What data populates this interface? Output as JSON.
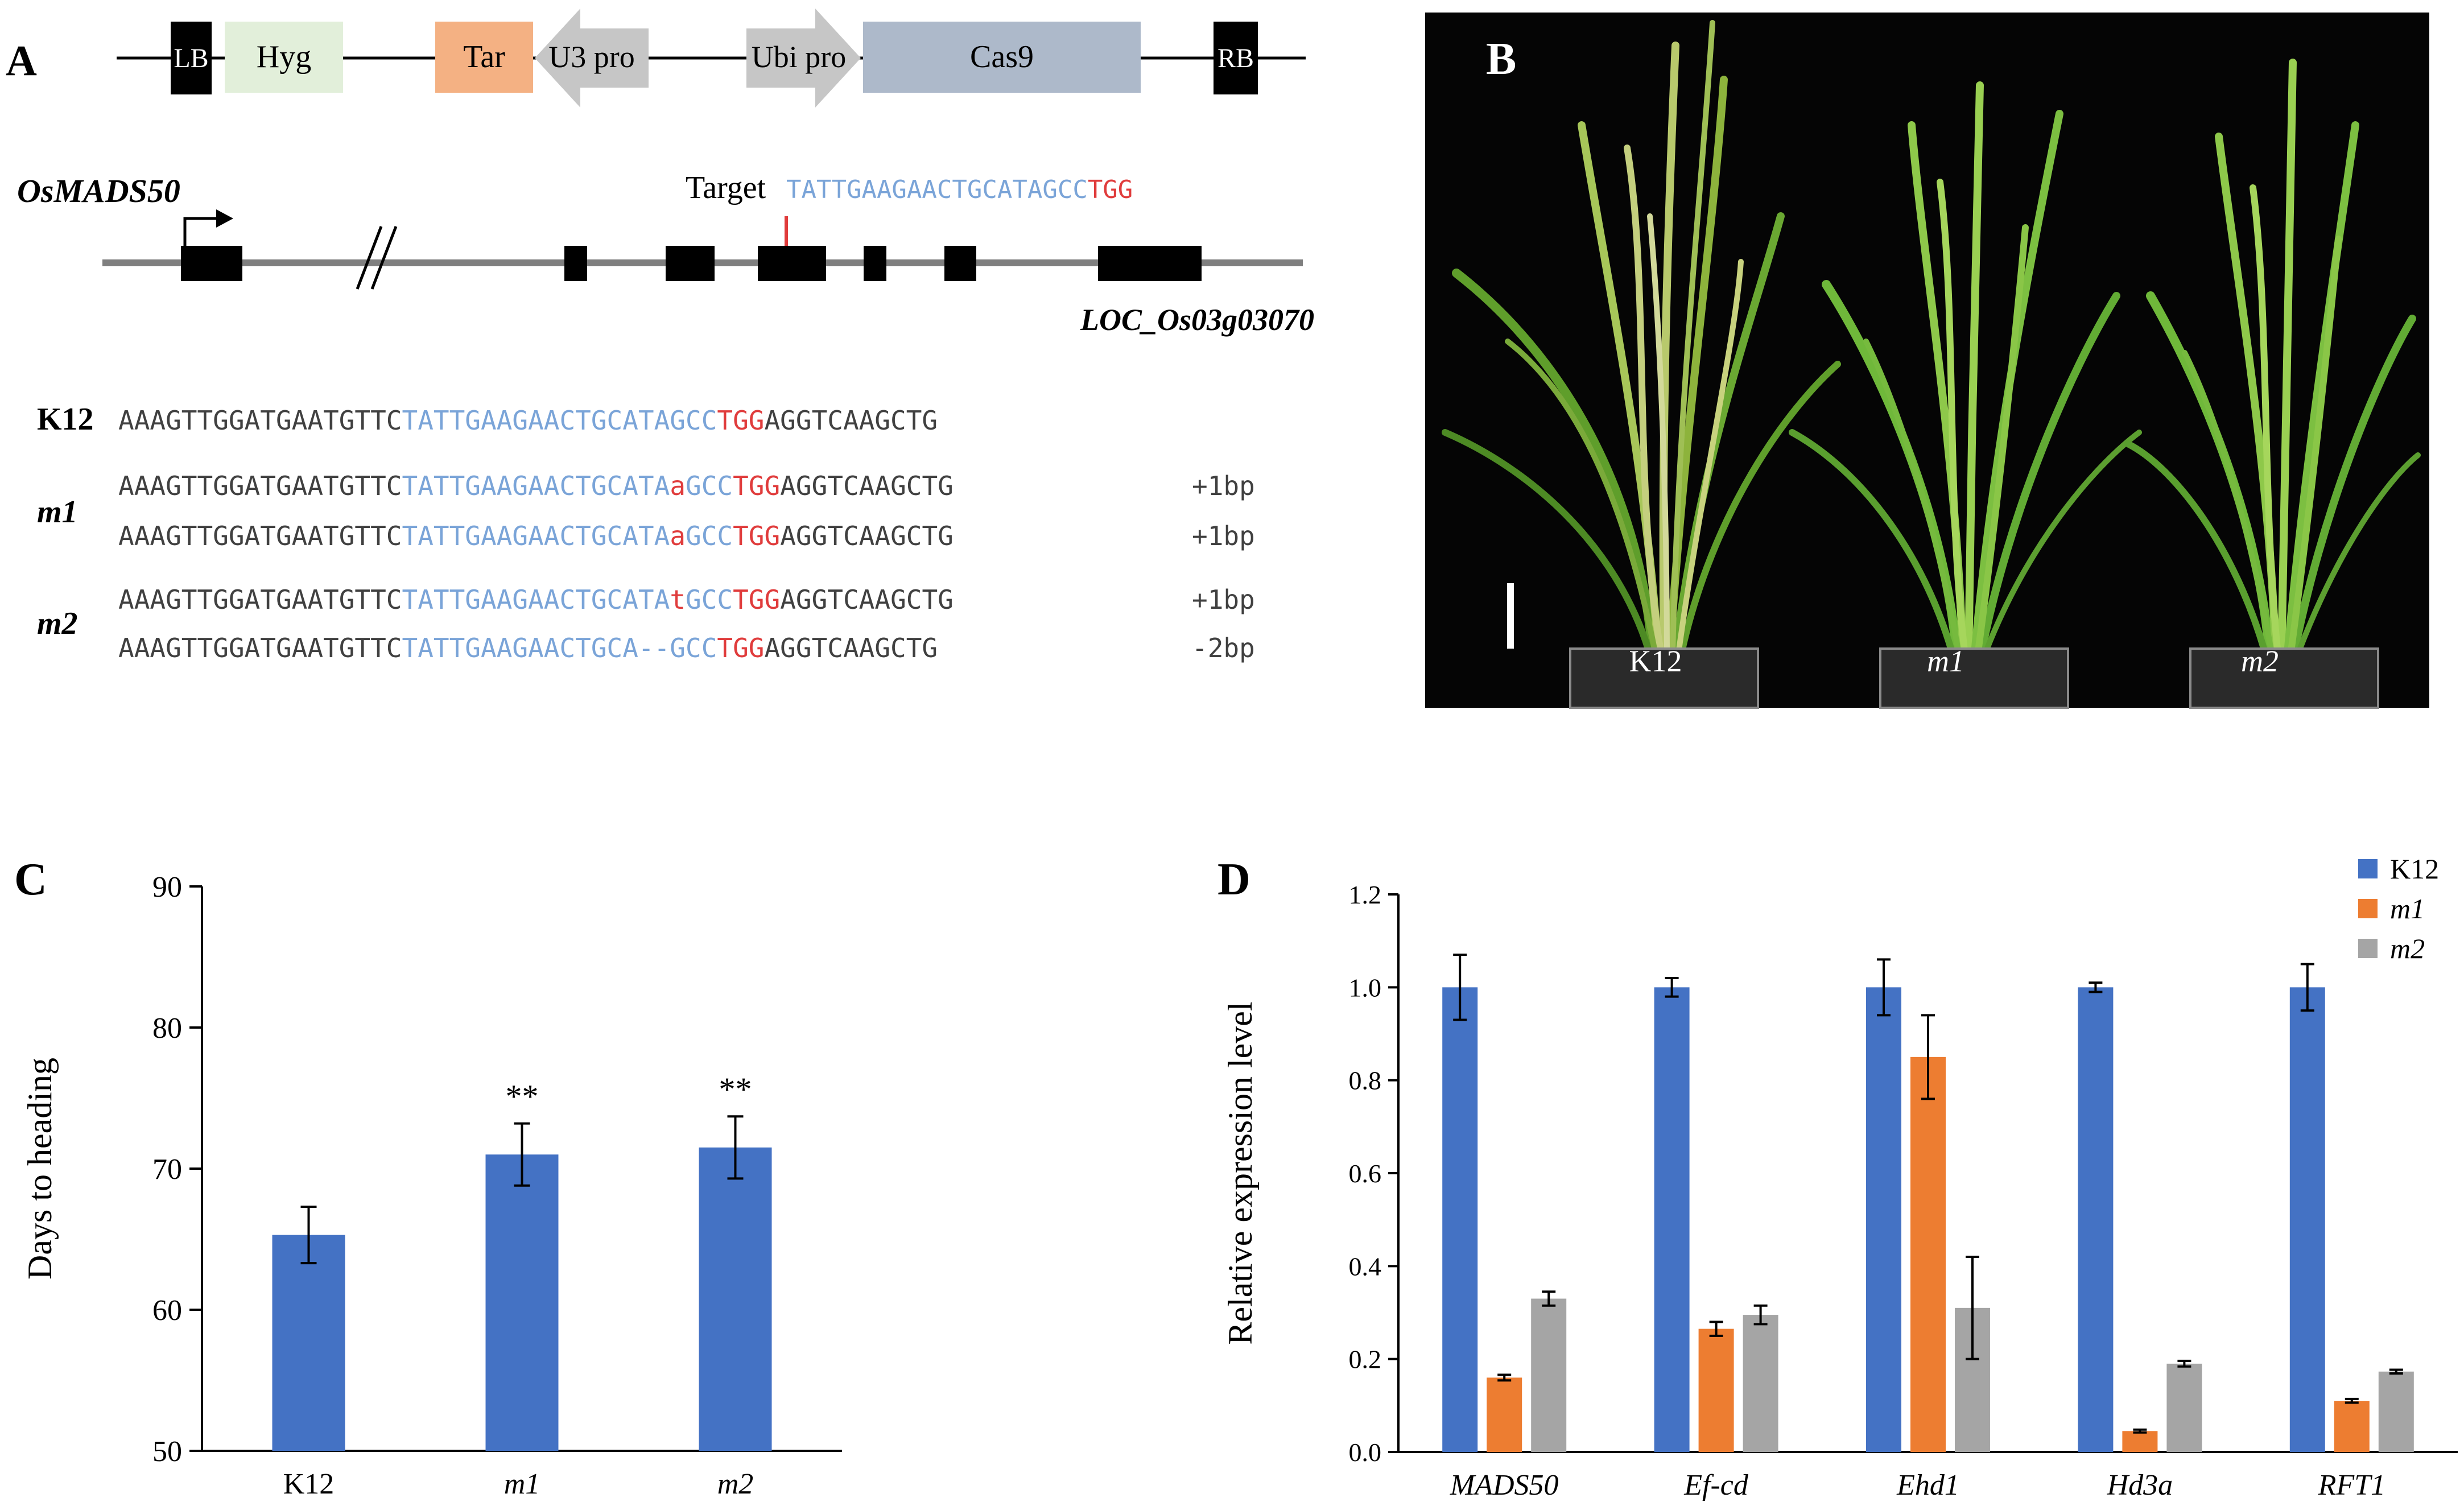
{
  "panels": {
    "a": "A",
    "b": "B",
    "c": "C",
    "d": "D"
  },
  "construct": {
    "lb": "LB",
    "hyg": "Hyg",
    "tar": "Tar",
    "u3pro": "U3 pro",
    "ubipro": "Ubi pro",
    "cas9": "Cas9",
    "rb": "RB"
  },
  "gene": {
    "name": "OsMADS50",
    "locus": "LOC_Os03g03070",
    "target_label": "Target",
    "target_seq": "TATTGAAGAACTGCATAGCC",
    "target_pam": "TGG"
  },
  "alignment": {
    "rows": [
      {
        "label": "K12",
        "pre": "AAAGTTGGATGAATGTTC",
        "tgt": "TATTGAAGAACTGCATAGCC",
        "ins": "",
        "tgt2": "",
        "pam": "TGG",
        "post": "AGGTCAAGCTG",
        "note": ""
      },
      {
        "label": "m1",
        "pre": "AAAGTTGGATGAATGTTC",
        "tgt": "TATTGAAGAACTGCATA",
        "ins": "a",
        "tgt2": "GCC",
        "pam": "TGG",
        "post": "AGGTCAAGCTG",
        "note": "+1bp"
      },
      {
        "label": "",
        "pre": "AAAGTTGGATGAATGTTC",
        "tgt": "TATTGAAGAACTGCATA",
        "ins": "a",
        "tgt2": "GCC",
        "pam": "TGG",
        "post": "AGGTCAAGCTG",
        "note": "+1bp"
      },
      {
        "label": "m2",
        "pre": "AAAGTTGGATGAATGTTC",
        "tgt": "TATTGAAGAACTGCATA",
        "ins": "t",
        "tgt2": "GCC",
        "pam": "TGG",
        "post": "AGGTCAAGCTG",
        "note": "+1bp"
      },
      {
        "label": "",
        "pre": "AAAGTTGGATGAATGTTC",
        "tgt": "TATTGAAGAACTGCA--GCC",
        "ins": "",
        "tgt2": "",
        "pam": "TGG",
        "post": "AGGTCAAGCTG",
        "note": "-2bp"
      }
    ]
  },
  "photo": {
    "labels": [
      "K12",
      "m1",
      "m2"
    ]
  },
  "chart_data": [
    {
      "type": "bar",
      "panel": "C",
      "categories": [
        "K12",
        "m1",
        "m2"
      ],
      "values": [
        65.3,
        71.0,
        71.5
      ],
      "errors": [
        2.0,
        2.2,
        2.2
      ],
      "significance": [
        "",
        "**",
        "**"
      ],
      "ylabel": "Days to heading",
      "xlabel": "",
      "ylim": [
        50,
        90
      ],
      "yticks": [
        50,
        60,
        70,
        80,
        90
      ],
      "color": "#4472c4"
    },
    {
      "type": "bar",
      "panel": "D",
      "categories": [
        "MADS50",
        "Ef-cd",
        "Ehd1",
        "Hd3a",
        "RFT1"
      ],
      "series": [
        {
          "name": "K12",
          "color": "#4472c4",
          "values": [
            1.0,
            1.0,
            1.0,
            1.0,
            1.0
          ],
          "errors": [
            0.07,
            0.02,
            0.06,
            0.01,
            0.05
          ]
        },
        {
          "name": "m1",
          "color": "#ed7d31",
          "values": [
            0.16,
            0.265,
            0.85,
            0.045,
            0.11
          ],
          "errors": [
            0.006,
            0.015,
            0.09,
            0.003,
            0.004
          ]
        },
        {
          "name": "m2",
          "color": "#a5a5a5",
          "values": [
            0.33,
            0.295,
            0.31,
            0.19,
            0.173
          ],
          "errors": [
            0.015,
            0.02,
            0.11,
            0.006,
            0.004
          ]
        }
      ],
      "ylabel": "Relative expression level",
      "xlabel": "",
      "ylim": [
        0,
        1.2
      ],
      "yticks": [
        "0.0",
        "0.2",
        "0.4",
        "0.6",
        "0.8",
        "1.0",
        "1.2"
      ],
      "legend": "top-right"
    }
  ]
}
